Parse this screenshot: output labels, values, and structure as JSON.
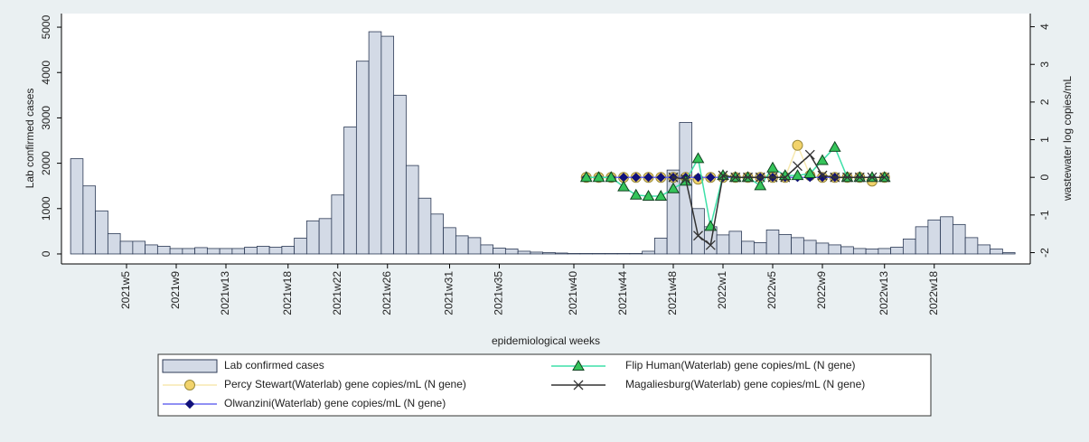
{
  "chart_data": {
    "type": "bar",
    "y_label": "Lab confirmed cases",
    "y2_label": "wastewater log copies/mL",
    "x_label": "epidemiological weeks",
    "categories": [
      null,
      null,
      null,
      null,
      "2021w5",
      null,
      null,
      null,
      "2021w9",
      null,
      null,
      null,
      "2021w13",
      null,
      null,
      null,
      null,
      "2021w18",
      null,
      null,
      null,
      "2021w22",
      null,
      null,
      null,
      "2021w26",
      null,
      null,
      null,
      null,
      "2021w31",
      null,
      null,
      null,
      "2021w35",
      null,
      null,
      null,
      null,
      null,
      "2021w40",
      null,
      null,
      null,
      "2021w44",
      null,
      null,
      null,
      "2021w48",
      null,
      null,
      null,
      "2022w1",
      null,
      null,
      null,
      "2022w5",
      null,
      null,
      null,
      "2022w9",
      null,
      null,
      null,
      null,
      "2022w13",
      null,
      null,
      null,
      "2022w18",
      null,
      null,
      null,
      null,
      null,
      null
    ],
    "ylim": [
      -220,
      5300
    ],
    "yticks": [
      0,
      1000,
      2000,
      3000,
      4000,
      5000
    ],
    "y2lim": [
      -2.3,
      4.35
    ],
    "y2ticks": [
      -2,
      -1,
      0,
      1,
      2,
      3,
      4
    ],
    "series": [
      {
        "name": "Lab confirmed cases",
        "type": "bar",
        "color": "#d3dae6",
        "edge": "#2c3a55",
        "values": [
          2100,
          1500,
          950,
          450,
          280,
          280,
          200,
          170,
          120,
          120,
          140,
          120,
          120,
          120,
          150,
          170,
          150,
          170,
          350,
          730,
          780,
          1300,
          2800,
          4250,
          4900,
          4800,
          3500,
          1950,
          1230,
          880,
          580,
          400,
          360,
          200,
          130,
          110,
          60,
          40,
          30,
          20,
          10,
          10,
          10,
          10,
          10,
          10,
          60,
          350,
          1850,
          2900,
          1000,
          600,
          420,
          500,
          280,
          250,
          530,
          430,
          360,
          300,
          240,
          200,
          160,
          120,
          110,
          120,
          150,
          330,
          600,
          750,
          820,
          650,
          360,
          200,
          110,
          30
        ]
      },
      {
        "name": "Percy Stewart(Waterlab) gene copies/mL (N gene)",
        "type": "line",
        "axis": "y2",
        "marker": "circle",
        "color": "#f7e9b0",
        "marker_color": "#f2d36b",
        "edge": "#9a8a3a",
        "values": [
          null,
          null,
          null,
          null,
          null,
          null,
          null,
          null,
          null,
          null,
          null,
          null,
          null,
          null,
          null,
          null,
          null,
          null,
          null,
          null,
          null,
          null,
          null,
          null,
          null,
          null,
          null,
          null,
          null,
          null,
          null,
          null,
          null,
          null,
          null,
          null,
          null,
          null,
          null,
          null,
          null,
          0,
          0,
          0,
          0,
          0,
          0,
          0,
          0,
          0,
          -0.05,
          0,
          0,
          0,
          0,
          0,
          0,
          0,
          0.85,
          0.05,
          0,
          0,
          0,
          0,
          -0.1,
          0,
          null,
          null,
          null,
          null,
          null,
          null,
          null,
          null,
          null,
          null
        ]
      },
      {
        "name": "Olwanzini(Waterlab) gene copies/mL (N gene)",
        "type": "line",
        "axis": "y2",
        "marker": "diamond",
        "color": "#6b6bf0",
        "marker_color": "#10107a",
        "edge": "#10107a",
        "values": [
          null,
          null,
          null,
          null,
          null,
          null,
          null,
          null,
          null,
          null,
          null,
          null,
          null,
          null,
          null,
          null,
          null,
          null,
          null,
          null,
          null,
          null,
          null,
          null,
          null,
          null,
          null,
          null,
          null,
          null,
          null,
          null,
          null,
          null,
          null,
          null,
          null,
          null,
          null,
          null,
          null,
          0,
          0,
          0,
          0,
          0,
          0,
          0,
          0,
          0,
          0,
          0,
          0,
          0,
          0,
          0,
          0,
          0,
          0,
          0,
          0,
          0,
          0,
          0,
          0,
          0,
          null,
          null,
          null,
          null,
          null,
          null,
          null,
          null,
          null,
          null
        ]
      },
      {
        "name": "Flip Human(Waterlab) gene copies/mL (N gene)",
        "type": "line",
        "axis": "y2",
        "marker": "triangle",
        "color": "#3ee0a8",
        "marker_color": "#35c45a",
        "edge": "#114422",
        "values": [
          null,
          null,
          null,
          null,
          null,
          null,
          null,
          null,
          null,
          null,
          null,
          null,
          null,
          null,
          null,
          null,
          null,
          null,
          null,
          null,
          null,
          null,
          null,
          null,
          null,
          null,
          null,
          null,
          null,
          null,
          null,
          null,
          null,
          null,
          null,
          null,
          null,
          null,
          null,
          null,
          null,
          0,
          0,
          0,
          -0.25,
          -0.47,
          -0.5,
          -0.5,
          -0.3,
          -0.1,
          0.5,
          -1.3,
          0.05,
          0,
          0,
          -0.22,
          0.25,
          0.05,
          0.05,
          0.1,
          0.45,
          0.8,
          0,
          0,
          0,
          0,
          null,
          null,
          null,
          null,
          null,
          null,
          null,
          null,
          null,
          null
        ]
      },
      {
        "name": "Magaliesburg(Waterlab) gene copies/mL (N gene)",
        "type": "line",
        "axis": "y2",
        "marker": "x",
        "color": "#333333",
        "marker_color": "#333333",
        "edge": "#333333",
        "values": [
          null,
          null,
          null,
          null,
          null,
          null,
          null,
          null,
          null,
          null,
          null,
          null,
          null,
          null,
          null,
          null,
          null,
          null,
          null,
          null,
          null,
          null,
          null,
          null,
          null,
          null,
          null,
          null,
          null,
          null,
          null,
          null,
          null,
          null,
          null,
          null,
          null,
          null,
          null,
          null,
          null,
          null,
          null,
          null,
          null,
          null,
          null,
          null,
          0,
          -0.05,
          -1.55,
          -1.8,
          0.05,
          0,
          0,
          0,
          0,
          0,
          0.3,
          0.6,
          0.05,
          0,
          0,
          0,
          0,
          0,
          null,
          null,
          null,
          null,
          null,
          null,
          null,
          null,
          null,
          null
        ]
      }
    ]
  }
}
